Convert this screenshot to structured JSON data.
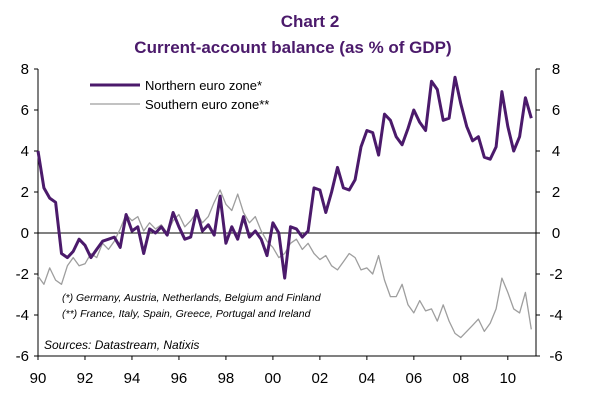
{
  "chart_data": {
    "type": "line",
    "title": "Chart 2",
    "subtitle": "Current-account balance (as % of GDP)",
    "xlabel": "",
    "ylabel": "",
    "xlim": [
      1990,
      2011.2
    ],
    "ylim": [
      -6,
      8
    ],
    "y_ticks": [
      8,
      6,
      4,
      2,
      0,
      -2,
      -4,
      -6
    ],
    "x_ticks": [
      {
        "value": 1990,
        "label": "90"
      },
      {
        "value": 1992,
        "label": "92"
      },
      {
        "value": 1994,
        "label": "94"
      },
      {
        "value": 1996,
        "label": "96"
      },
      {
        "value": 1998,
        "label": "98"
      },
      {
        "value": 2000,
        "label": "00"
      },
      {
        "value": 2002,
        "label": "02"
      },
      {
        "value": 2004,
        "label": "04"
      },
      {
        "value": 2006,
        "label": "06"
      },
      {
        "value": 2008,
        "label": "08"
      },
      {
        "value": 2010,
        "label": "10"
      }
    ],
    "dual_y_axis": true,
    "grid": false,
    "legend_position": "top-left",
    "series": [
      {
        "name": "Northern euro zone*",
        "color": "#4b1a6b",
        "points": [
          [
            1990.0,
            4.0
          ],
          [
            1990.25,
            2.2
          ],
          [
            1990.5,
            1.7
          ],
          [
            1990.75,
            1.5
          ],
          [
            1991.0,
            -1.0
          ],
          [
            1991.25,
            -1.2
          ],
          [
            1991.5,
            -0.9
          ],
          [
            1991.75,
            -0.3
          ],
          [
            1992.0,
            -0.6
          ],
          [
            1992.25,
            -1.2
          ],
          [
            1992.5,
            -0.8
          ],
          [
            1992.75,
            -0.4
          ],
          [
            1993.0,
            -0.3
          ],
          [
            1993.25,
            -0.2
          ],
          [
            1993.5,
            -0.7
          ],
          [
            1993.75,
            0.9
          ],
          [
            1994.0,
            0.1
          ],
          [
            1994.25,
            0.3
          ],
          [
            1994.5,
            -1.0
          ],
          [
            1994.75,
            0.2
          ],
          [
            1995.0,
            0.0
          ],
          [
            1995.25,
            0.3
          ],
          [
            1995.5,
            -0.1
          ],
          [
            1995.75,
            1.0
          ],
          [
            1996.0,
            0.3
          ],
          [
            1996.25,
            -0.3
          ],
          [
            1996.5,
            -0.2
          ],
          [
            1996.75,
            1.1
          ],
          [
            1997.0,
            0.1
          ],
          [
            1997.25,
            0.4
          ],
          [
            1997.5,
            -0.1
          ],
          [
            1997.75,
            1.8
          ],
          [
            1998.0,
            -0.5
          ],
          [
            1998.25,
            0.3
          ],
          [
            1998.5,
            -0.3
          ],
          [
            1998.75,
            0.8
          ],
          [
            1999.0,
            -0.2
          ],
          [
            1999.25,
            0.1
          ],
          [
            1999.5,
            -0.3
          ],
          [
            1999.75,
            -1.1
          ],
          [
            2000.0,
            0.5
          ],
          [
            2000.25,
            0.0
          ],
          [
            2000.5,
            -2.2
          ],
          [
            2000.75,
            0.3
          ],
          [
            2001.0,
            0.2
          ],
          [
            2001.25,
            -0.2
          ],
          [
            2001.5,
            0.1
          ],
          [
            2001.75,
            2.2
          ],
          [
            2002.0,
            2.1
          ],
          [
            2002.25,
            1.0
          ],
          [
            2002.5,
            2.0
          ],
          [
            2002.75,
            3.2
          ],
          [
            2003.0,
            2.2
          ],
          [
            2003.25,
            2.1
          ],
          [
            2003.5,
            2.6
          ],
          [
            2003.75,
            4.2
          ],
          [
            2004.0,
            5.0
          ],
          [
            2004.25,
            4.9
          ],
          [
            2004.5,
            3.8
          ],
          [
            2004.75,
            5.8
          ],
          [
            2005.0,
            5.5
          ],
          [
            2005.25,
            4.7
          ],
          [
            2005.5,
            4.3
          ],
          [
            2005.75,
            5.1
          ],
          [
            2006.0,
            6.0
          ],
          [
            2006.25,
            5.4
          ],
          [
            2006.5,
            5.0
          ],
          [
            2006.75,
            7.4
          ],
          [
            2007.0,
            7.0
          ],
          [
            2007.25,
            5.5
          ],
          [
            2007.5,
            5.6
          ],
          [
            2007.75,
            7.6
          ],
          [
            2008.0,
            6.3
          ],
          [
            2008.25,
            5.2
          ],
          [
            2008.5,
            4.5
          ],
          [
            2008.75,
            4.7
          ],
          [
            2009.0,
            3.7
          ],
          [
            2009.25,
            3.6
          ],
          [
            2009.5,
            4.2
          ],
          [
            2009.75,
            6.9
          ],
          [
            2010.0,
            5.2
          ],
          [
            2010.25,
            4.0
          ],
          [
            2010.5,
            4.7
          ],
          [
            2010.75,
            6.6
          ],
          [
            2011.0,
            5.6
          ]
        ]
      },
      {
        "name": "Southern euro zone**",
        "color": "#9e9e9e",
        "points": [
          [
            1990.0,
            -2.1
          ],
          [
            1990.25,
            -2.5
          ],
          [
            1990.5,
            -1.7
          ],
          [
            1990.75,
            -2.3
          ],
          [
            1991.0,
            -2.5
          ],
          [
            1991.25,
            -1.6
          ],
          [
            1991.5,
            -1.2
          ],
          [
            1991.75,
            -1.6
          ],
          [
            1992.0,
            -1.5
          ],
          [
            1992.25,
            -1.0
          ],
          [
            1992.5,
            -1.2
          ],
          [
            1992.75,
            -0.5
          ],
          [
            1993.0,
            -0.8
          ],
          [
            1993.25,
            -0.4
          ],
          [
            1993.5,
            0.2
          ],
          [
            1993.75,
            0.9
          ],
          [
            1994.0,
            0.6
          ],
          [
            1994.25,
            0.8
          ],
          [
            1994.5,
            0.1
          ],
          [
            1994.75,
            0.5
          ],
          [
            1995.0,
            0.2
          ],
          [
            1995.25,
            0.4
          ],
          [
            1995.5,
            0.0
          ],
          [
            1995.75,
            0.6
          ],
          [
            1996.0,
            0.9
          ],
          [
            1996.25,
            0.3
          ],
          [
            1996.5,
            0.6
          ],
          [
            1996.75,
            1.0
          ],
          [
            1997.0,
            0.5
          ],
          [
            1997.25,
            0.8
          ],
          [
            1997.5,
            1.5
          ],
          [
            1997.75,
            2.1
          ],
          [
            1998.0,
            1.4
          ],
          [
            1998.25,
            1.1
          ],
          [
            1998.5,
            1.9
          ],
          [
            1998.75,
            1.0
          ],
          [
            1999.0,
            0.5
          ],
          [
            1999.25,
            0.8
          ],
          [
            1999.5,
            0.1
          ],
          [
            1999.75,
            -0.4
          ],
          [
            2000.0,
            -0.7
          ],
          [
            2000.25,
            -1.2
          ],
          [
            2000.5,
            -1.0
          ],
          [
            2000.75,
            -0.5
          ],
          [
            2001.0,
            -0.3
          ],
          [
            2001.25,
            -0.8
          ],
          [
            2001.5,
            -0.5
          ],
          [
            2001.75,
            -1.0
          ],
          [
            2002.0,
            -1.3
          ],
          [
            2002.25,
            -1.1
          ],
          [
            2002.5,
            -1.6
          ],
          [
            2002.75,
            -1.8
          ],
          [
            2003.0,
            -1.4
          ],
          [
            2003.25,
            -1.0
          ],
          [
            2003.5,
            -1.2
          ],
          [
            2003.75,
            -1.8
          ],
          [
            2004.0,
            -1.7
          ],
          [
            2004.25,
            -2.0
          ],
          [
            2004.5,
            -1.1
          ],
          [
            2004.75,
            -2.3
          ],
          [
            2005.0,
            -3.1
          ],
          [
            2005.25,
            -3.1
          ],
          [
            2005.5,
            -2.5
          ],
          [
            2005.75,
            -3.5
          ],
          [
            2006.0,
            -3.9
          ],
          [
            2006.25,
            -3.3
          ],
          [
            2006.5,
            -3.8
          ],
          [
            2006.75,
            -3.7
          ],
          [
            2007.0,
            -4.3
          ],
          [
            2007.25,
            -3.5
          ],
          [
            2007.5,
            -4.3
          ],
          [
            2007.75,
            -4.9
          ],
          [
            2008.0,
            -5.1
          ],
          [
            2008.25,
            -4.8
          ],
          [
            2008.5,
            -4.5
          ],
          [
            2008.75,
            -4.2
          ],
          [
            2009.0,
            -4.8
          ],
          [
            2009.25,
            -4.4
          ],
          [
            2009.5,
            -3.7
          ],
          [
            2009.75,
            -2.2
          ],
          [
            2010.0,
            -2.9
          ],
          [
            2010.25,
            -3.7
          ],
          [
            2010.5,
            -3.9
          ],
          [
            2010.75,
            -2.9
          ],
          [
            2011.0,
            -4.7
          ]
        ]
      }
    ],
    "notes": [
      "(*) Germany, Austria, Netherlands, Belgium and Finland",
      "(**) France, Italy, Spain, Greece, Portugal and Ireland"
    ],
    "source": "Sources: Datastream, Natixis"
  }
}
